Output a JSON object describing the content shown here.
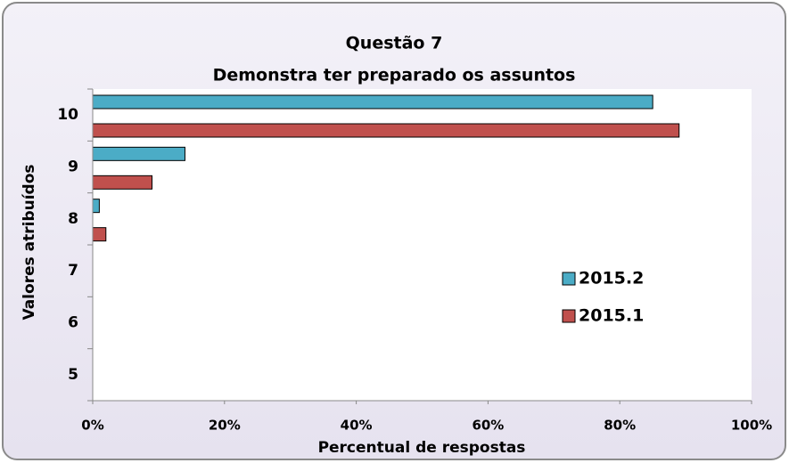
{
  "chart_data": {
    "type": "barh",
    "title": "Questão  7",
    "subtitle": "Demonstra ter preparado os assuntos",
    "x_label": "Percentual de respostas",
    "y_label": "Valores atribuídos",
    "categories": [
      "10",
      "9",
      "8",
      "7",
      "6",
      "5"
    ],
    "series": [
      {
        "name": "2015.2",
        "color": "#4bacc6",
        "values": [
          85,
          14,
          1,
          0,
          0,
          0
        ]
      },
      {
        "name": "2015.1",
        "color": "#c0504d",
        "values": [
          89,
          9,
          2,
          0,
          0,
          0
        ]
      }
    ],
    "xlim": [
      0,
      100
    ],
    "xticks": [
      {
        "value": 0,
        "label": "0%"
      },
      {
        "value": 20,
        "label": "20%"
      },
      {
        "value": 40,
        "label": "40%"
      },
      {
        "value": 60,
        "label": "60%"
      },
      {
        "value": 80,
        "label": "80%"
      },
      {
        "value": 100,
        "label": "100%"
      }
    ],
    "grid": false,
    "legend": "right"
  }
}
